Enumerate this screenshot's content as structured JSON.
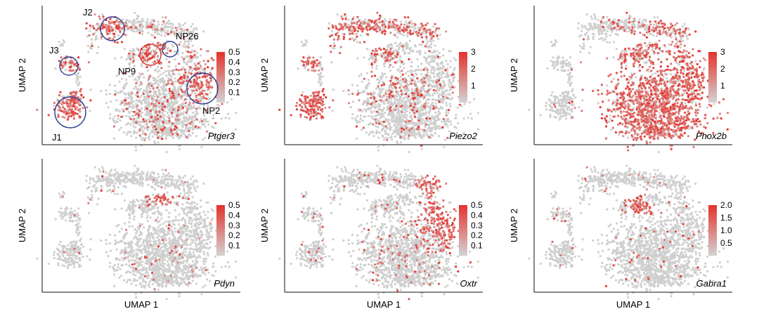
{
  "chart_data": [
    {
      "type": "scatter",
      "gene": "Ptger3",
      "xlabel": "",
      "ylabel": "UMAP 2",
      "colorbar": {
        "ticks": [
          "0.5",
          "0.4",
          "0.3",
          "0.2",
          "0.1"
        ],
        "min": 0,
        "max": 0.5
      },
      "annotations": [
        {
          "label": "J2",
          "circle_color": "blue"
        },
        {
          "label": "J3",
          "circle_color": "blue"
        },
        {
          "label": "J1",
          "circle_color": "blue"
        },
        {
          "label": "NP26",
          "circle_color": "blue"
        },
        {
          "label": "NP9",
          "circle_color": "red"
        },
        {
          "label": "NP2",
          "circle_color": "blue"
        }
      ],
      "expression": {
        "J1": 0.8,
        "J2": 0.8,
        "J3": 0.7,
        "NP26": 0.5,
        "NP9": 0.6,
        "NP2": 0.9,
        "other": 0.12
      }
    },
    {
      "type": "scatter",
      "gene": "Piezo2",
      "xlabel": "",
      "ylabel": "UMAP 2",
      "colorbar": {
        "ticks": [
          "3",
          "2",
          "1"
        ],
        "min": 0,
        "max": 3
      },
      "expression": {
        "J1": 0.9,
        "J2": 0.6,
        "J3": 0.8,
        "top_left_arc": 0.6,
        "mid_arm": 0.4,
        "NP_blob_left": 0.5,
        "other": 0.06
      }
    },
    {
      "type": "scatter",
      "gene": "Phox2b",
      "xlabel": "",
      "ylabel": "UMAP 2",
      "colorbar": {
        "ticks": [
          "3",
          "2",
          "1"
        ],
        "min": 0,
        "max": 3
      },
      "expression": {
        "NP_body": 0.85,
        "NP_arms": 0.6,
        "top_right_arc": 0.6,
        "J_region": 0.03
      }
    },
    {
      "type": "scatter",
      "gene": "Pdyn",
      "xlabel": "UMAP 1",
      "ylabel": "UMAP 2",
      "colorbar": {
        "ticks": [
          "0.5",
          "0.4",
          "0.3",
          "0.2",
          "0.1"
        ],
        "min": 0,
        "max": 0.5
      },
      "expression": {
        "NP26": 0.8,
        "other": 0.03
      }
    },
    {
      "type": "scatter",
      "gene": "Oxtr",
      "xlabel": "UMAP 1",
      "ylabel": "UMAP 2",
      "colorbar": {
        "ticks": [
          "0.5",
          "0.4",
          "0.3",
          "0.2",
          "0.1"
        ],
        "min": 0,
        "max": 0.5
      },
      "expression": {
        "NP2": 0.9,
        "right_arm": 0.8,
        "other": 0.06
      }
    },
    {
      "type": "scatter",
      "gene": "Gabra1",
      "xlabel": "UMAP 1",
      "ylabel": "UMAP 2",
      "colorbar": {
        "ticks": [
          "2.0",
          "1.5",
          "1.0",
          "0.5"
        ],
        "min": 0,
        "max": 2.0
      },
      "expression": {
        "NP9": 0.95,
        "other": 0.03
      }
    }
  ],
  "colors": {
    "low": "#cfcfcf",
    "high": "#e4322b",
    "circle_blue": "#2a3f93",
    "circle_red": "#d9302a",
    "axis": "#111111"
  }
}
